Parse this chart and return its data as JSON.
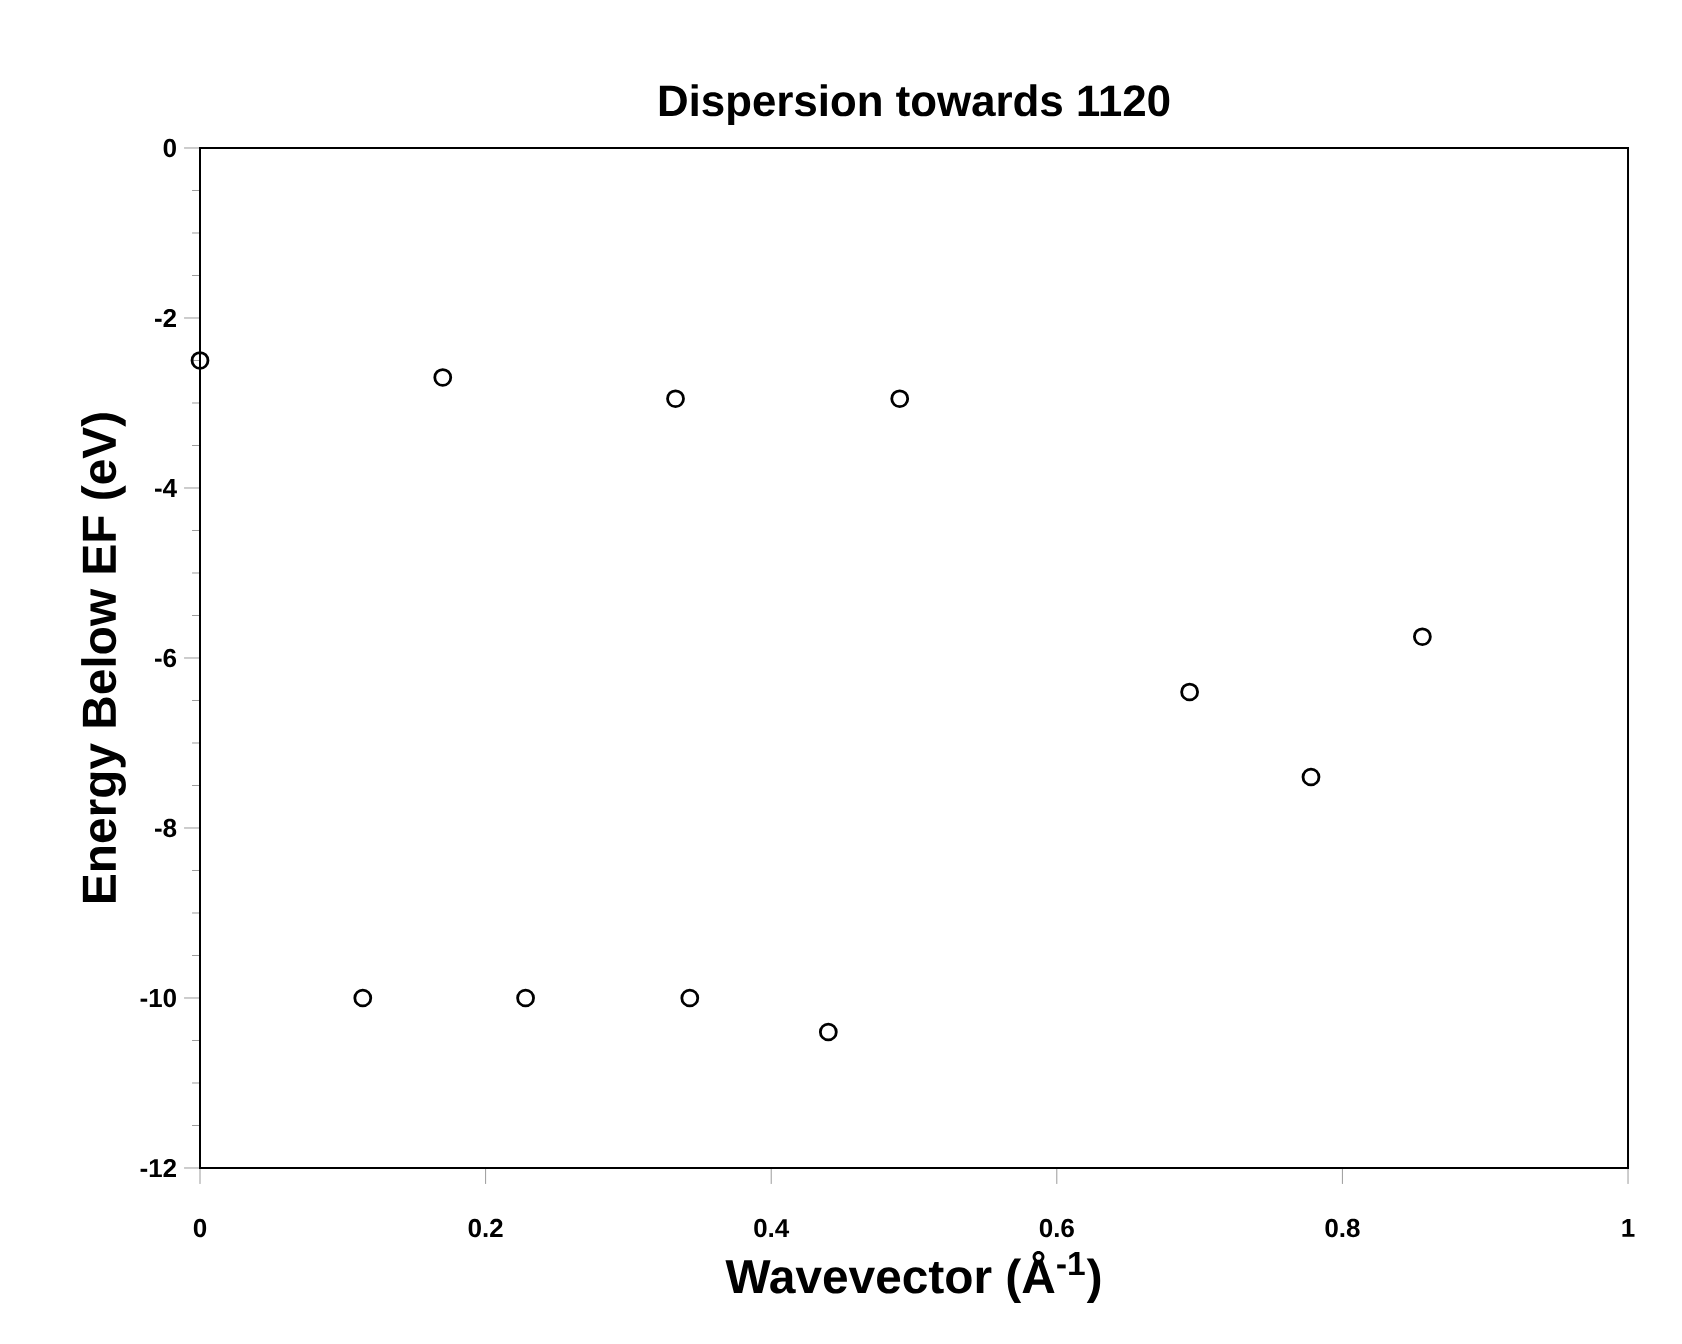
{
  "chart_data": {
    "type": "scatter",
    "title": "Dispersion towards 1120",
    "xlabel": "Wavevector (Å$^{-1}$)",
    "ylabel": "Energy Below EF (eV)",
    "x": [
      0.0,
      0.17,
      0.333,
      0.49,
      0.114,
      0.228,
      0.343,
      0.44,
      0.693,
      0.778,
      0.856
    ],
    "values": [
      -2.5,
      -2.7,
      -2.95,
      -2.95,
      -10,
      -10,
      -10,
      -10.4,
      -6.4,
      -7.4,
      -5.75
    ],
    "color": "#000000",
    "marker": "circle",
    "xlim": [
      0,
      1
    ],
    "xticks": [
      0,
      0.2,
      0.4,
      0.6,
      0.8,
      1
    ],
    "ylim": [
      -12,
      0
    ],
    "yticks": [
      -12,
      -10,
      -8,
      -6,
      -4,
      -2,
      0
    ],
    "grid": false
  }
}
